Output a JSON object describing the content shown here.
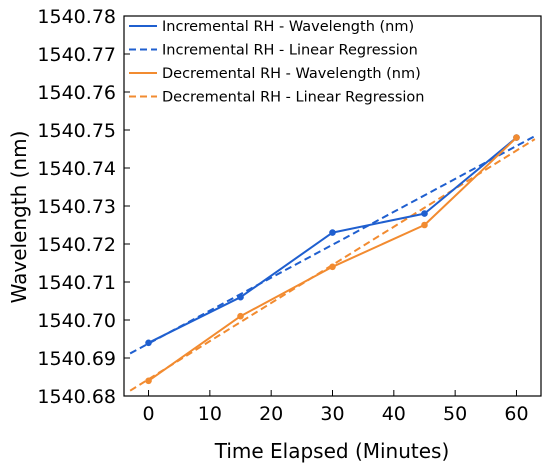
{
  "chart_data": {
    "type": "line",
    "title": "",
    "xlabel": "Time Elapsed (Minutes)",
    "ylabel": "Wavelength (nm)",
    "xlim": [
      -4,
      64
    ],
    "ylim": [
      1540.68,
      1540.78
    ],
    "xticks": [
      0,
      10,
      20,
      30,
      40,
      50,
      60
    ],
    "yticks": [
      1540.68,
      1540.69,
      1540.7,
      1540.71,
      1540.72,
      1540.73,
      1540.74,
      1540.75,
      1540.76,
      1540.77,
      1540.78
    ],
    "ytick_labels": [
      "1540.68",
      "1540.69",
      "1540.70",
      "1540.71",
      "1540.72",
      "1540.73",
      "1540.74",
      "1540.75",
      "1540.76",
      "1540.77",
      "1540.78"
    ],
    "xtick_labels": [
      "0",
      "10",
      "20",
      "30",
      "40",
      "50",
      "60"
    ],
    "grid": false,
    "legend_position": "top-left",
    "series": [
      {
        "name": "Incremental RH - Wavelength (nm)",
        "color": "#1f5fcf",
        "style": "solid",
        "markers": true,
        "x": [
          0,
          15,
          30,
          45,
          60
        ],
        "y": [
          1540.694,
          1540.706,
          1540.723,
          1540.728,
          1540.748
        ]
      },
      {
        "name": "Incremental RH - Linear Regression",
        "color": "#1f5fcf",
        "style": "dashed",
        "markers": false,
        "x": [
          -3,
          63
        ],
        "y": [
          1540.6912,
          1540.7484
        ]
      },
      {
        "name": "Decremental RH - Wavelength (nm)",
        "color": "#f28b30",
        "style": "solid",
        "markers": true,
        "x": [
          0,
          15,
          30,
          45,
          60
        ],
        "y": [
          1540.684,
          1540.701,
          1540.714,
          1540.725,
          1540.748
        ]
      },
      {
        "name": "Decremental RH - Linear Regression",
        "color": "#f28b30",
        "style": "dashed",
        "markers": false,
        "x": [
          -3,
          63
        ],
        "y": [
          1540.6814,
          1540.7476
        ]
      }
    ]
  }
}
